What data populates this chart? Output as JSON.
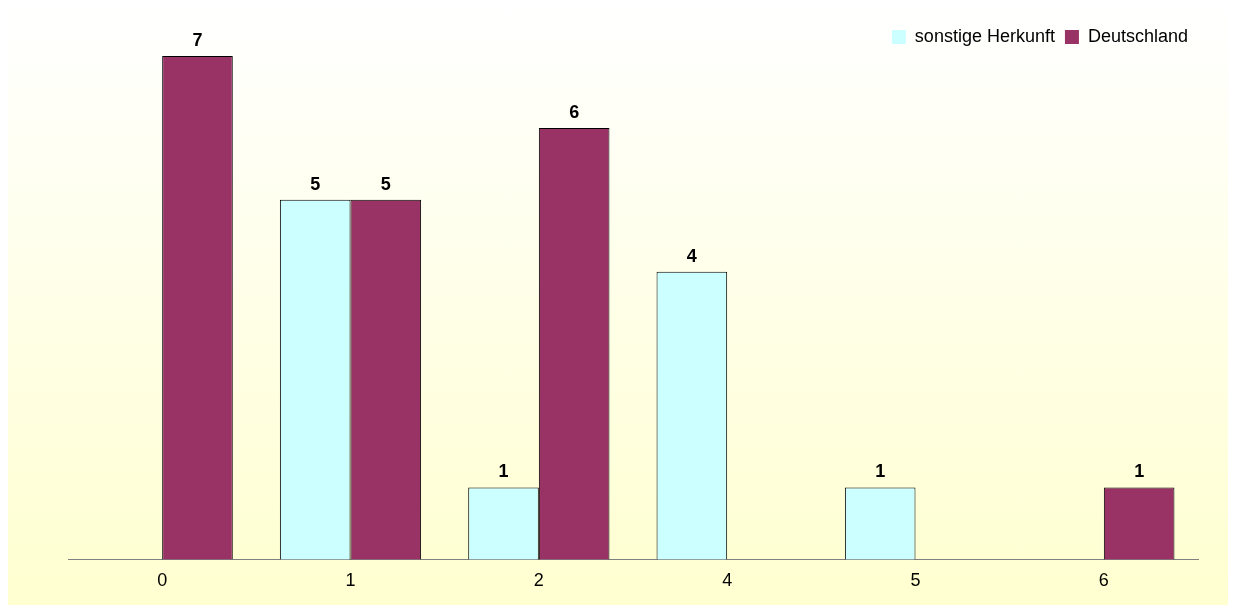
{
  "chart_data": {
    "type": "bar",
    "categories": [
      "0",
      "1",
      "2",
      "4",
      "5",
      "6"
    ],
    "series": [
      {
        "name": "sonstige Herkunft",
        "color": "#ccffff",
        "values": [
          null,
          5,
          1,
          4,
          1,
          null
        ]
      },
      {
        "name": "Deutschland",
        "color": "#993366",
        "values": [
          7,
          5,
          6,
          null,
          null,
          1
        ]
      }
    ],
    "data_labels": true,
    "legend": "top right",
    "grid": false,
    "tick_labels": "x"
  }
}
